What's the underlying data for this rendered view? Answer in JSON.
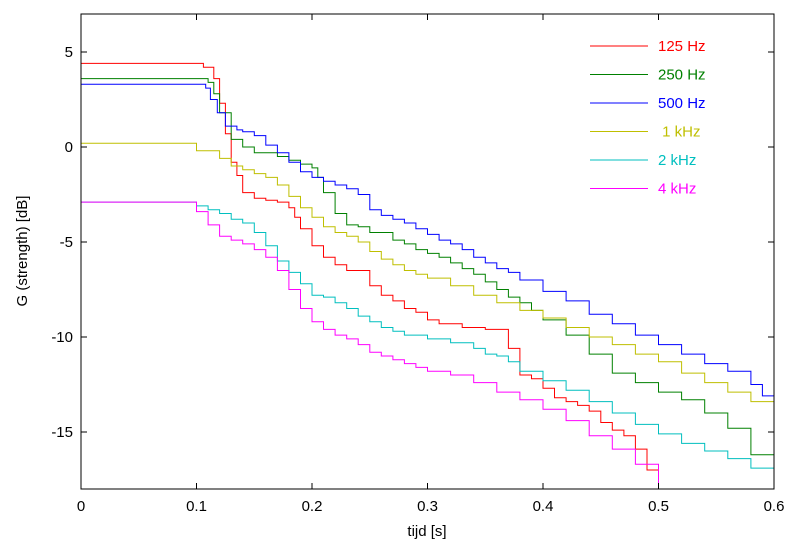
{
  "chart_data": {
    "type": "line",
    "title": "",
    "xlabel": "tijd  [s]",
    "ylabel": "G (strength) [dB]",
    "xlim": [
      0,
      0.6
    ],
    "ylim": [
      -18,
      7
    ],
    "xticks": [
      0,
      0.1,
      0.2,
      0.3,
      0.4,
      0.5,
      0.6
    ],
    "xtick_labels": [
      "0",
      "0.1",
      "0.2",
      "0.3",
      "0.4",
      "0.5",
      "0.6"
    ],
    "yticks": [
      5,
      0,
      -5,
      -10,
      -15
    ],
    "ytick_labels": [
      "5",
      "0",
      "-5",
      "-10",
      "-15"
    ],
    "grid": false,
    "legend_position": "top-right",
    "series": [
      {
        "name": "125 Hz",
        "color": "#ff0000",
        "x": [
          0,
          0.1,
          0.106,
          0.115,
          0.12,
          0.125,
          0.13,
          0.135,
          0.14,
          0.15,
          0.16,
          0.17,
          0.18,
          0.185,
          0.19,
          0.2,
          0.21,
          0.22,
          0.23,
          0.24,
          0.25,
          0.26,
          0.27,
          0.28,
          0.29,
          0.3,
          0.31,
          0.32,
          0.33,
          0.34,
          0.35,
          0.36,
          0.37,
          0.38,
          0.39,
          0.4,
          0.41,
          0.42,
          0.43,
          0.44,
          0.45,
          0.46,
          0.47,
          0.48,
          0.49,
          0.5
        ],
        "y": [
          4.4,
          4.4,
          4.2,
          3.6,
          2.3,
          0.7,
          -0.8,
          -1.5,
          -2.4,
          -2.7,
          -2.8,
          -2.9,
          -3.2,
          -3.7,
          -4.3,
          -5.2,
          -5.8,
          -6.2,
          -6.5,
          -6.5,
          -7.3,
          -7.8,
          -8.1,
          -8.5,
          -8.7,
          -9.1,
          -9.3,
          -9.3,
          -9.5,
          -9.5,
          -9.6,
          -9.6,
          -10.6,
          -12.0,
          -12.2,
          -12.7,
          -13.2,
          -13.4,
          -13.6,
          -13.9,
          -14.5,
          -14.9,
          -15.2,
          -15.9,
          -17.0,
          -17.8
        ]
      },
      {
        "name": "250 Hz",
        "color": "#008000",
        "x": [
          0,
          0.1,
          0.11,
          0.115,
          0.12,
          0.13,
          0.14,
          0.15,
          0.16,
          0.17,
          0.18,
          0.19,
          0.2,
          0.205,
          0.21,
          0.22,
          0.23,
          0.24,
          0.25,
          0.26,
          0.27,
          0.28,
          0.29,
          0.3,
          0.31,
          0.32,
          0.33,
          0.34,
          0.35,
          0.36,
          0.37,
          0.38,
          0.39,
          0.4,
          0.42,
          0.44,
          0.46,
          0.48,
          0.5,
          0.52,
          0.54,
          0.56,
          0.58,
          0.6
        ],
        "y": [
          3.6,
          3.6,
          3.4,
          2.8,
          1.8,
          0.4,
          0.0,
          -0.3,
          -0.3,
          -0.5,
          -0.7,
          -0.9,
          -1.1,
          -1.6,
          -2.4,
          -3.5,
          -4.1,
          -4.2,
          -4.5,
          -4.5,
          -4.9,
          -5.1,
          -5.4,
          -5.6,
          -5.8,
          -6.1,
          -6.4,
          -6.7,
          -7.1,
          -7.5,
          -7.9,
          -8.2,
          -8.6,
          -9.1,
          -9.9,
          -10.9,
          -11.9,
          -12.4,
          -12.9,
          -13.3,
          -14.0,
          -14.8,
          -16.2,
          -17.4
        ]
      },
      {
        "name": "500 Hz",
        "color": "#0000ff",
        "x": [
          0,
          0.1,
          0.108,
          0.112,
          0.118,
          0.125,
          0.135,
          0.14,
          0.15,
          0.16,
          0.17,
          0.18,
          0.19,
          0.2,
          0.21,
          0.22,
          0.23,
          0.24,
          0.25,
          0.26,
          0.27,
          0.28,
          0.29,
          0.3,
          0.31,
          0.32,
          0.33,
          0.34,
          0.35,
          0.36,
          0.37,
          0.38,
          0.4,
          0.42,
          0.44,
          0.46,
          0.48,
          0.5,
          0.52,
          0.54,
          0.56,
          0.58,
          0.59,
          0.6
        ],
        "y": [
          3.3,
          3.3,
          3.1,
          2.5,
          1.8,
          1.1,
          0.9,
          0.8,
          0.6,
          0.1,
          -0.3,
          -0.8,
          -1.3,
          -1.6,
          -1.8,
          -2.0,
          -2.2,
          -2.5,
          -3.3,
          -3.6,
          -3.8,
          -4.0,
          -4.3,
          -4.6,
          -4.9,
          -5.1,
          -5.4,
          -5.8,
          -6.1,
          -6.4,
          -6.6,
          -7.0,
          -7.6,
          -8.1,
          -8.8,
          -9.3,
          -9.9,
          -10.4,
          -10.9,
          -11.4,
          -11.8,
          -12.5,
          -13.1,
          -13.4
        ]
      },
      {
        "name": " 1 kHz",
        "color": "#bfbf00",
        "x": [
          0,
          0.095,
          0.1,
          0.12,
          0.13,
          0.14,
          0.15,
          0.16,
          0.17,
          0.18,
          0.19,
          0.2,
          0.21,
          0.22,
          0.23,
          0.24,
          0.25,
          0.26,
          0.27,
          0.28,
          0.29,
          0.3,
          0.32,
          0.34,
          0.36,
          0.38,
          0.4,
          0.42,
          0.44,
          0.46,
          0.48,
          0.5,
          0.52,
          0.54,
          0.56,
          0.58,
          0.6
        ],
        "y": [
          0.2,
          0.2,
          -0.2,
          -0.6,
          -1.0,
          -1.2,
          -1.4,
          -1.6,
          -2.0,
          -2.6,
          -3.2,
          -3.7,
          -4.2,
          -4.5,
          -4.7,
          -5.0,
          -5.5,
          -5.9,
          -6.2,
          -6.5,
          -6.7,
          -6.9,
          -7.3,
          -7.8,
          -8.2,
          -8.6,
          -9.0,
          -9.5,
          -10.0,
          -10.4,
          -10.9,
          -11.3,
          -11.9,
          -12.4,
          -12.9,
          -13.4,
          -13.7
        ]
      },
      {
        "name": "2 kHz",
        "color": "#00bfbf",
        "x": [
          0,
          0.095,
          0.1,
          0.11,
          0.12,
          0.13,
          0.14,
          0.15,
          0.16,
          0.17,
          0.18,
          0.19,
          0.2,
          0.21,
          0.22,
          0.23,
          0.24,
          0.25,
          0.26,
          0.27,
          0.28,
          0.3,
          0.32,
          0.34,
          0.35,
          0.36,
          0.37,
          0.38,
          0.4,
          0.42,
          0.44,
          0.46,
          0.48,
          0.5,
          0.52,
          0.54,
          0.56,
          0.58,
          0.6
        ],
        "y": [
          -2.9,
          -2.9,
          -3.1,
          -3.3,
          -3.5,
          -3.8,
          -4.0,
          -4.5,
          -5.2,
          -6.0,
          -6.6,
          -7.2,
          -7.8,
          -7.9,
          -8.2,
          -8.5,
          -8.9,
          -9.2,
          -9.5,
          -9.7,
          -9.9,
          -10.1,
          -10.3,
          -10.6,
          -10.9,
          -11.0,
          -11.3,
          -11.8,
          -12.3,
          -12.8,
          -13.4,
          -14.0,
          -14.6,
          -15.1,
          -15.6,
          -16.0,
          -16.4,
          -16.9,
          -17.4
        ]
      },
      {
        "name": "4 kHz",
        "color": "#ff00ff",
        "x": [
          0,
          0.095,
          0.1,
          0.11,
          0.12,
          0.13,
          0.14,
          0.15,
          0.16,
          0.17,
          0.18,
          0.19,
          0.2,
          0.21,
          0.22,
          0.23,
          0.24,
          0.25,
          0.26,
          0.27,
          0.28,
          0.29,
          0.3,
          0.32,
          0.34,
          0.36,
          0.38,
          0.4,
          0.42,
          0.44,
          0.46,
          0.48,
          0.5
        ],
        "y": [
          -2.9,
          -2.9,
          -3.4,
          -4.1,
          -4.7,
          -4.9,
          -5.1,
          -5.4,
          -5.8,
          -6.5,
          -7.5,
          -8.5,
          -9.2,
          -9.6,
          -9.9,
          -10.1,
          -10.4,
          -10.8,
          -11.0,
          -11.2,
          -11.4,
          -11.6,
          -11.8,
          -12.0,
          -12.4,
          -12.9,
          -13.3,
          -13.8,
          -14.4,
          -15.2,
          -15.9,
          -16.7,
          -17.9
        ]
      }
    ]
  }
}
